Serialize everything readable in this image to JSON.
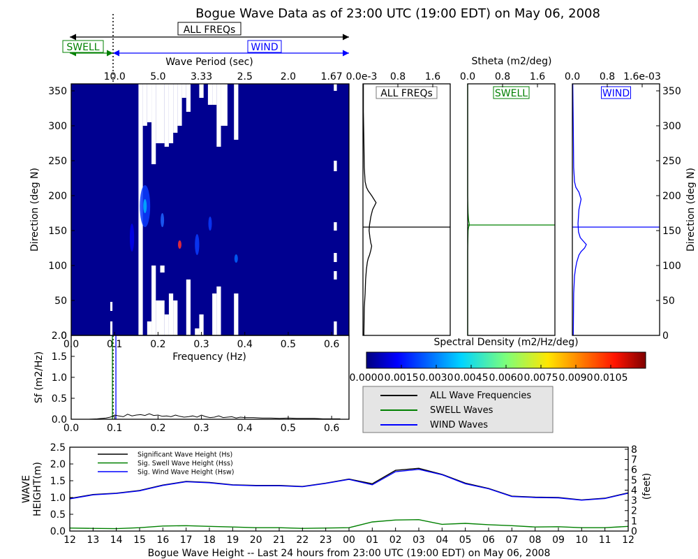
{
  "title": "Bogue Wave Data as of 23:00 UTC (19:00 EDT) on May 06, 2008",
  "band_labels": {
    "all": "ALL FREQs",
    "swell": "SWELL",
    "wind": "WIND"
  },
  "colors": {
    "all": "#000000",
    "swell": "#008000",
    "wind": "#0000ff"
  },
  "chart_data": [
    {
      "id": "spectrum",
      "type": "heatmap",
      "xlabel": "Frequency (Hz)",
      "ylabel": "Direction (deg N)",
      "top_label": "Wave Period (sec)",
      "xlim": [
        0,
        0.64
      ],
      "ylim": [
        0,
        360
      ],
      "xticks": [
        "0.0",
        "0.1",
        "0.2",
        "0.3",
        "0.4",
        "0.5",
        "0.6"
      ],
      "yticks": [
        "0",
        "50",
        "100",
        "150",
        "200",
        "250",
        "300",
        "350"
      ],
      "period_ticks": [
        {
          "f": 0.1,
          "label": "10.0"
        },
        {
          "f": 0.2,
          "label": "5.0"
        },
        {
          "f": 0.3,
          "label": "3.33"
        },
        {
          "f": 0.4,
          "label": "2.5"
        },
        {
          "f": 0.5,
          "label": "2.0"
        },
        {
          "f": 0.6,
          "label": "1.67"
        }
      ],
      "separation_frequency": 0.1,
      "white_columns": [
        {
          "f0": 0.155,
          "f1": 0.165,
          "d0": 0,
          "d1": 360
        },
        {
          "f0": 0.165,
          "f1": 0.175,
          "d0": 300,
          "d1": 360
        },
        {
          "f0": 0.175,
          "f1": 0.185,
          "d0": 0,
          "d1": 20
        },
        {
          "f0": 0.175,
          "f1": 0.185,
          "d0": 305,
          "d1": 360
        },
        {
          "f0": 0.155,
          "f1": 0.165,
          "d0": 0,
          "d1": 0
        },
        {
          "f0": 0.185,
          "f1": 0.195,
          "d0": 0,
          "d1": 100
        },
        {
          "f0": 0.185,
          "f1": 0.195,
          "d0": 245,
          "d1": 360
        },
        {
          "f0": 0.195,
          "f1": 0.215,
          "d0": 0,
          "d1": 50
        },
        {
          "f0": 0.195,
          "f1": 0.215,
          "d0": 275,
          "d1": 360
        },
        {
          "f0": 0.205,
          "f1": 0.215,
          "d0": 90,
          "d1": 100
        },
        {
          "f0": 0.215,
          "f1": 0.225,
          "d0": 0,
          "d1": 30
        },
        {
          "f0": 0.215,
          "f1": 0.225,
          "d0": 270,
          "d1": 360
        },
        {
          "f0": 0.225,
          "f1": 0.235,
          "d0": 0,
          "d1": 60
        },
        {
          "f0": 0.225,
          "f1": 0.235,
          "d0": 275,
          "d1": 360
        },
        {
          "f0": 0.235,
          "f1": 0.245,
          "d0": 0,
          "d1": 50
        },
        {
          "f0": 0.235,
          "f1": 0.245,
          "d0": 290,
          "d1": 360
        },
        {
          "f0": 0.245,
          "f1": 0.255,
          "d0": 0,
          "d1": 0
        },
        {
          "f0": 0.245,
          "f1": 0.255,
          "d0": 300,
          "d1": 360
        },
        {
          "f0": 0.255,
          "f1": 0.265,
          "d0": 0,
          "d1": 0
        },
        {
          "f0": 0.255,
          "f1": 0.265,
          "d0": 340,
          "d1": 360
        },
        {
          "f0": 0.265,
          "f1": 0.275,
          "d0": 0,
          "d1": 80
        },
        {
          "f0": 0.265,
          "f1": 0.275,
          "d0": 320,
          "d1": 360
        },
        {
          "f0": 0.275,
          "f1": 0.285,
          "d0": 0,
          "d1": 0
        },
        {
          "f0": 0.285,
          "f1": 0.295,
          "d0": 0,
          "d1": 10
        },
        {
          "f0": 0.295,
          "f1": 0.305,
          "d0": 0,
          "d1": 30
        },
        {
          "f0": 0.295,
          "f1": 0.305,
          "d0": 340,
          "d1": 360
        },
        {
          "f0": 0.305,
          "f1": 0.315,
          "d0": 0,
          "d1": 0
        },
        {
          "f0": 0.315,
          "f1": 0.325,
          "d0": 0,
          "d1": 0
        },
        {
          "f0": 0.315,
          "f1": 0.325,
          "d0": 330,
          "d1": 360
        },
        {
          "f0": 0.325,
          "f1": 0.335,
          "d0": 0,
          "d1": 60
        },
        {
          "f0": 0.325,
          "f1": 0.335,
          "d0": 330,
          "d1": 360
        },
        {
          "f0": 0.335,
          "f1": 0.345,
          "d0": 0,
          "d1": 70
        },
        {
          "f0": 0.335,
          "f1": 0.345,
          "d0": 270,
          "d1": 360
        },
        {
          "f0": 0.345,
          "f1": 0.36,
          "d0": 0,
          "d1": 0
        },
        {
          "f0": 0.345,
          "f1": 0.36,
          "d0": 300,
          "d1": 360
        },
        {
          "f0": 0.375,
          "f1": 0.385,
          "d0": 0,
          "d1": 60
        },
        {
          "f0": 0.375,
          "f1": 0.385,
          "d0": 280,
          "d1": 360
        },
        {
          "f0": 0.385,
          "f1": 0.395,
          "d0": 0,
          "d1": 0
        },
        {
          "f0": 0.395,
          "f1": 0.41,
          "d0": 0,
          "d1": 0
        },
        {
          "f0": 0.605,
          "f1": 0.612,
          "d0": 350,
          "d1": 360
        },
        {
          "f0": 0.605,
          "f1": 0.612,
          "d0": 0,
          "d1": 20
        },
        {
          "f0": 0.605,
          "f1": 0.612,
          "d0": 150,
          "d1": 162
        },
        {
          "f0": 0.605,
          "f1": 0.612,
          "d0": 105,
          "d1": 118
        },
        {
          "f0": 0.605,
          "f1": 0.612,
          "d0": 235,
          "d1": 250
        },
        {
          "f0": 0.605,
          "f1": 0.612,
          "d0": 80,
          "d1": 92
        },
        {
          "f0": 0.09,
          "f1": 0.095,
          "d0": 35,
          "d1": 48
        },
        {
          "f0": 0.09,
          "f1": 0.095,
          "d0": 0,
          "d1": 20
        }
      ],
      "hotspots": [
        {
          "f": 0.17,
          "d": 185,
          "rf": 0.012,
          "rd": 30,
          "color": "#0a3cff"
        },
        {
          "f": 0.17,
          "d": 185,
          "rf": 0.004,
          "rd": 10,
          "color": "#00b4ff"
        },
        {
          "f": 0.21,
          "d": 165,
          "rf": 0.004,
          "rd": 10,
          "color": "#1e64ff"
        },
        {
          "f": 0.25,
          "d": 130,
          "rf": 0.004,
          "rd": 6,
          "color": "#ff3030"
        },
        {
          "f": 0.29,
          "d": 130,
          "rf": 0.005,
          "rd": 15,
          "color": "#0a3cff"
        },
        {
          "f": 0.32,
          "d": 160,
          "rf": 0.004,
          "rd": 10,
          "color": "#0a3cff"
        },
        {
          "f": 0.38,
          "d": 110,
          "rf": 0.004,
          "rd": 6,
          "color": "#0064ff"
        },
        {
          "f": 0.14,
          "d": 140,
          "rf": 0.005,
          "rd": 20,
          "color": "#0000ee"
        }
      ]
    },
    {
      "id": "stheta-all",
      "type": "line",
      "label": "ALL FREQs",
      "top_label": "Stheta (m2/deg)",
      "xticks": [
        "0.0e-3",
        "0.8",
        "1.6"
      ],
      "xlim": [
        0,
        2.0
      ],
      "ylim": [
        0,
        360
      ],
      "mean_direction": 155,
      "x": [
        0.02,
        0.03,
        0.05,
        0.06,
        0.08,
        0.1,
        0.12,
        0.15,
        0.18,
        0.2,
        0.18,
        0.16,
        0.14,
        0.15,
        0.18,
        0.22,
        0.3,
        0.2,
        0.12,
        0.08,
        0.05,
        0.03,
        0.02,
        0.01,
        0.01
      ],
      "y": [
        0,
        40,
        60,
        80,
        95,
        105,
        110,
        115,
        122,
        128,
        132,
        140,
        150,
        158,
        170,
        180,
        190,
        200,
        207,
        212,
        220,
        240,
        280,
        320,
        360
      ]
    },
    {
      "id": "stheta-swell",
      "type": "line",
      "label": "SWELL",
      "xticks": [
        "0.0",
        "0.8",
        "1.6"
      ],
      "xlim": [
        0,
        2.0
      ],
      "ylim": [
        0,
        360
      ],
      "mean_direction": 158,
      "x": [
        0.0,
        0.0,
        0.01,
        0.02,
        0.04,
        0.02,
        0.01,
        0.0,
        0.0
      ],
      "y": [
        0,
        120,
        150,
        155,
        158,
        165,
        175,
        200,
        360
      ]
    },
    {
      "id": "stheta-wind",
      "type": "line",
      "label": "WIND",
      "xticks": [
        "0.0",
        "0.8",
        "1.6e-03"
      ],
      "xlim": [
        0,
        2.0
      ],
      "ylim": [
        0,
        360
      ],
      "yticks": [
        "0",
        "50",
        "100",
        "150",
        "200",
        "250",
        "300",
        "350"
      ],
      "ylabel": "Direction (deg N)",
      "mean_direction": 155,
      "x": [
        0.02,
        0.03,
        0.05,
        0.07,
        0.1,
        0.15,
        0.2,
        0.28,
        0.32,
        0.25,
        0.18,
        0.14,
        0.13,
        0.15,
        0.2,
        0.15,
        0.08,
        0.05,
        0.03,
        0.02,
        0.01
      ],
      "y": [
        0,
        60,
        85,
        95,
        105,
        115,
        120,
        125,
        130,
        135,
        140,
        148,
        160,
        180,
        195,
        205,
        212,
        220,
        240,
        300,
        360
      ]
    },
    {
      "id": "sf",
      "type": "line",
      "ylabel": "Sf (m2/Hz)",
      "xlim": [
        0,
        0.64
      ],
      "ylim": [
        0,
        2.0
      ],
      "xticks": [
        "0.0",
        "0.1",
        "0.2",
        "0.3",
        "0.4",
        "0.5",
        "0.6"
      ],
      "yticks": [
        "0.0",
        "0.5",
        "1.0",
        "1.5",
        "2.0"
      ],
      "swell_line_f": 0.095,
      "wind_line_f": 0.103,
      "x": [
        0.0,
        0.04,
        0.06,
        0.08,
        0.09,
        0.1,
        0.11,
        0.12,
        0.13,
        0.14,
        0.15,
        0.16,
        0.17,
        0.18,
        0.19,
        0.2,
        0.21,
        0.22,
        0.23,
        0.24,
        0.25,
        0.26,
        0.27,
        0.28,
        0.29,
        0.3,
        0.31,
        0.32,
        0.33,
        0.34,
        0.35,
        0.36,
        0.37,
        0.38,
        0.39,
        0.4,
        0.42,
        0.44,
        0.46,
        0.48,
        0.5,
        0.52,
        0.54,
        0.56,
        0.58,
        0.6,
        0.62
      ],
      "y": [
        0,
        0,
        0.01,
        0.03,
        0.05,
        0.1,
        0.08,
        0.06,
        0.12,
        0.08,
        0.1,
        0.11,
        0.09,
        0.13,
        0.09,
        0.1,
        0.07,
        0.08,
        0.06,
        0.1,
        0.07,
        0.05,
        0.06,
        0.08,
        0.05,
        0.1,
        0.06,
        0.04,
        0.05,
        0.08,
        0.04,
        0.05,
        0.06,
        0.03,
        0.05,
        0.04,
        0.04,
        0.03,
        0.03,
        0.02,
        0.03,
        0.02,
        0.02,
        0.02,
        0.01,
        0.01,
        0.01
      ]
    },
    {
      "id": "wave-height",
      "type": "line",
      "title": "Bogue Wave Height -- Last 24 hours from 23:00 UTC (19:00 EDT) on May 06, 2008",
      "ylabel": "WAVE HEIGHT(m)",
      "ylabel2": "(feet)",
      "ylim": [
        0,
        2.5
      ],
      "yticks": [
        "0.0",
        "0.5",
        "1.0",
        "1.5",
        "2.0",
        "2.5"
      ],
      "yticks2": [
        "0",
        "1",
        "2",
        "3",
        "4",
        "5",
        "6",
        "7",
        "8"
      ],
      "categories": [
        "12",
        "13",
        "14",
        "15",
        "16",
        "17",
        "18",
        "19",
        "20",
        "21",
        "22",
        "23",
        "00",
        "01",
        "02",
        "03",
        "04",
        "05",
        "06",
        "07",
        "08",
        "09",
        "10",
        "11",
        "12"
      ],
      "series": [
        {
          "name": "Significant Wave Height (Hs)",
          "color": "#000000",
          "values": [
            0.97,
            1.09,
            1.13,
            1.21,
            1.37,
            1.48,
            1.45,
            1.38,
            1.36,
            1.36,
            1.33,
            1.43,
            1.55,
            1.41,
            1.81,
            1.87,
            1.69,
            1.43,
            1.27,
            1.04,
            1.01,
            1.0,
            0.93,
            0.98,
            1.14
          ]
        },
        {
          "name": "Sig. Swell Wave Height (Hss)",
          "color": "#008000",
          "values": [
            0.09,
            0.08,
            0.07,
            0.1,
            0.15,
            0.16,
            0.14,
            0.12,
            0.1,
            0.1,
            0.08,
            0.09,
            0.1,
            0.27,
            0.33,
            0.34,
            0.2,
            0.23,
            0.19,
            0.16,
            0.12,
            0.13,
            0.1,
            0.1,
            0.14
          ]
        },
        {
          "name": "Sig. Wind Wave Height (Hsw)",
          "color": "#0000ff",
          "values": [
            0.96,
            1.08,
            1.12,
            1.2,
            1.36,
            1.47,
            1.44,
            1.37,
            1.35,
            1.35,
            1.32,
            1.42,
            1.54,
            1.38,
            1.77,
            1.84,
            1.68,
            1.41,
            1.26,
            1.03,
            1.0,
            0.99,
            0.92,
            0.97,
            1.13
          ]
        }
      ]
    }
  ],
  "colorbar": {
    "label": "Spectral Density (m2/Hz/deg)",
    "ticks": [
      "0.0000",
      "0.0015",
      "0.0030",
      "0.0045",
      "0.0060",
      "0.0075",
      "0.0090",
      "0.0105"
    ],
    "max": 0.012
  },
  "legend": [
    {
      "label": "ALL Wave Frequencies",
      "color": "#000000"
    },
    {
      "label": "SWELL Waves",
      "color": "#008000"
    },
    {
      "label": "WIND Waves",
      "color": "#0000ff"
    }
  ]
}
